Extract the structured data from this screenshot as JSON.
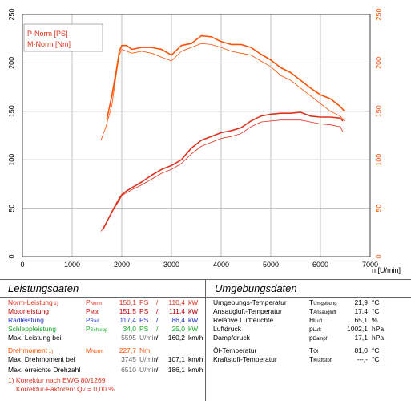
{
  "chart_data": {
    "type": "line",
    "xlabel": "n [U/min]",
    "xlim": [
      0,
      7000
    ],
    "x_ticks": [
      "0",
      "1000",
      "2000",
      "3000",
      "4000",
      "5000",
      "6000",
      "7000"
    ],
    "ylim": [
      0,
      250
    ],
    "y_ticks": [
      "0",
      "50",
      "100",
      "150",
      "200",
      "250"
    ],
    "grid": true,
    "legend": [
      "P-Norm [PS]",
      "M-Norm [Nm]"
    ],
    "colors": {
      "power": "#e0301e",
      "torque": "#ff5000",
      "grid": "#b0b0b0"
    },
    "series": [
      {
        "name": "P-Norm [PS]",
        "role": "power-run1",
        "x": [
          1620,
          1720,
          1850,
          1950,
          2000,
          2100,
          2200,
          2400,
          2600,
          2800,
          3000,
          3200,
          3400,
          3600,
          3800,
          4000,
          4200,
          4400,
          4600,
          4800,
          5000,
          5200,
          5400,
          5600,
          5800,
          6000,
          6200,
          6400,
          6450
        ],
        "y": [
          28,
          38,
          51,
          60,
          64,
          68,
          71,
          77,
          84,
          90,
          94,
          100,
          112,
          120,
          124,
          128,
          130,
          133,
          140,
          145,
          147,
          148,
          148,
          149,
          145,
          144,
          144,
          143,
          140
        ]
      },
      {
        "name": "P-Norm [PS]",
        "role": "power-run2",
        "x": [
          1580,
          1700,
          1850,
          1950,
          2000,
          2100,
          2200,
          2400,
          2600,
          2800,
          3000,
          3200,
          3400,
          3600,
          3800,
          4000,
          4200,
          4400,
          4600,
          4800,
          5000,
          5200,
          5400,
          5600,
          5800,
          6000,
          6200,
          6400,
          6450
        ],
        "y": [
          26,
          36,
          50,
          58,
          63,
          66,
          69,
          74,
          80,
          86,
          90,
          96,
          106,
          114,
          118,
          122,
          124,
          127,
          134,
          139,
          140,
          141,
          141,
          141,
          139,
          137,
          136,
          134,
          129
        ]
      },
      {
        "name": "M-Norm [Nm]",
        "role": "torque-run1",
        "x": [
          1700,
          1800,
          1900,
          1950,
          2000,
          2100,
          2200,
          2400,
          2600,
          2800,
          3000,
          3200,
          3400,
          3600,
          3800,
          4000,
          4200,
          4400,
          4600,
          4800,
          5000,
          5200,
          5400,
          5600,
          5800,
          6000,
          6200,
          6400,
          6480
        ],
        "y": [
          142,
          166,
          195,
          212,
          218,
          218,
          214,
          216,
          216,
          214,
          208,
          218,
          220,
          228,
          227,
          222,
          219,
          219,
          216,
          209,
          203,
          195,
          190,
          182,
          174,
          167,
          163,
          155,
          150
        ]
      },
      {
        "name": "M-Norm [Nm]",
        "role": "torque-run2",
        "x": [
          1580,
          1680,
          1800,
          1900,
          1950,
          2000,
          2100,
          2200,
          2400,
          2600,
          2800,
          3000,
          3200,
          3400,
          3600,
          3800,
          4000,
          4200,
          4400,
          4600,
          4800,
          5000,
          5200,
          5400,
          5600,
          5800,
          6000,
          6200,
          6400,
          6480
        ],
        "y": [
          120,
          134,
          156,
          192,
          208,
          214,
          212,
          210,
          212,
          210,
          206,
          202,
          212,
          216,
          220,
          219,
          216,
          212,
          210,
          208,
          202,
          196,
          187,
          182,
          174,
          166,
          158,
          150,
          145,
          140
        ]
      }
    ]
  },
  "left_table": {
    "title": "Leistungsdaten",
    "rows": [
      {
        "label": "Norm-Leistung",
        "footnote": "1)",
        "sym": "P",
        "sub": "Norm",
        "v1": "150,1",
        "u1": "PS",
        "sep": "/",
        "v2": "110,4",
        "u2": "kW",
        "color": "red"
      },
      {
        "label": "Motorleistung",
        "footnote": "",
        "sym": "P",
        "sub": "Mot",
        "v1": "151,5",
        "u1": "PS",
        "sep": "/",
        "v2": "111,4",
        "u2": "kW",
        "color": "dred"
      },
      {
        "label": "Radleistung",
        "footnote": "",
        "sym": "P",
        "sub": "Rad",
        "v1": "117,4",
        "u1": "PS",
        "sep": "/",
        "v2": "86,4",
        "u2": "kW",
        "color": "blue"
      },
      {
        "label": "Schleppleistung",
        "footnote": "",
        "sym": "P",
        "sub": "Schlepp",
        "v1": "34,0",
        "u1": "PS",
        "sep": "/",
        "v2": "25,0",
        "u2": "kW",
        "color": "green"
      },
      {
        "label": "Max. Leistung bei",
        "footnote": "",
        "sym": "",
        "sub": "",
        "v1": "5595",
        "u1": "U/min",
        "sep": "/",
        "v2": "160,2",
        "u2": "km/h",
        "color": "black"
      }
    ],
    "torque_rows": [
      {
        "label": "Drehmoment",
        "footnote": "1)",
        "sym": "M",
        "sub": "Norm",
        "v1": "227,7",
        "u1": "Nm",
        "color": "orange"
      },
      {
        "label": "Max. Drehmoment bei",
        "footnote": "",
        "sym": "",
        "sub": "",
        "v1": "3745",
        "u1": "U/min",
        "sep": "/",
        "v2": "107,1",
        "u2": "km/h",
        "color": "black"
      }
    ],
    "max_speed": {
      "label": "Max. erreichte Drehzahl",
      "v1": "6510",
      "u1": "U/min",
      "sep": "/",
      "v2": "186,1",
      "u2": "km/h"
    },
    "footnote1": "1) Korrektur nach EWG 80/1269",
    "footnote2_prefix": "Korrektur-Faktoren: Q",
    "footnote2_sub": "V",
    "footnote2_suffix": " =   0,00 %"
  },
  "right_table": {
    "title": "Umgebungsdaten",
    "rows": [
      {
        "label": "Umgebungs-Temperatur",
        "sym": "T",
        "sub": "Umgebung",
        "val": "21,9",
        "unit": "°C"
      },
      {
        "label": "Ansaugluft-Temperatur",
        "sym": "T",
        "sub": "Ansaugluft",
        "val": "17,4",
        "unit": "°C"
      },
      {
        "label": "Relative Luftfeuchte",
        "sym": "H",
        "sub": "Luft",
        "val": "65,1",
        "unit": "%"
      },
      {
        "label": "Luftdruck",
        "sym": "p",
        "sub": "Luft",
        "val": "1002,1",
        "unit": "hPa"
      },
      {
        "label": "Dampfdruck",
        "sym": "p",
        "sub": "Dampf",
        "val": "17,1",
        "unit": "hPa"
      },
      {
        "label": "Öl-Temperatur",
        "sym": "T",
        "sub": "Öl",
        "val": "81,0",
        "unit": "°C"
      },
      {
        "label": "Kraftstoff-Temperatur",
        "sym": "T",
        "sub": "Kraftstoff",
        "val": "---,-",
        "unit": "°C"
      }
    ]
  }
}
